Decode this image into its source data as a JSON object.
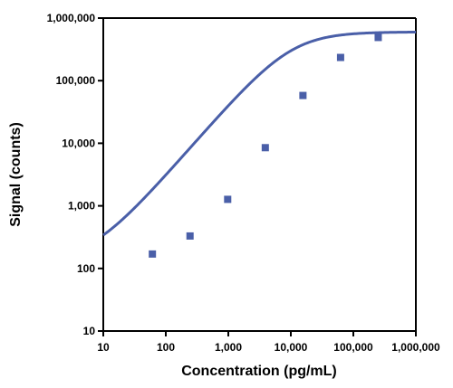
{
  "chart_data": {
    "type": "scatter",
    "title": "",
    "xlabel": "Concentration (pg/mL)",
    "ylabel": "Signal (counts)",
    "x_scale": "log",
    "y_scale": "log",
    "xlim": [
      10,
      1000000
    ],
    "ylim": [
      10,
      1000000
    ],
    "x_ticks": [
      10,
      100,
      1000,
      10000,
      100000,
      1000000
    ],
    "x_tick_labels": [
      "10",
      "100",
      "1,000",
      "10,000",
      "100,000",
      "1,000,000"
    ],
    "y_ticks": [
      10,
      100,
      1000,
      10000,
      100000,
      1000000
    ],
    "y_tick_labels": [
      "10",
      "100",
      "1,000",
      "10,000",
      "100,000",
      "1,000,000"
    ],
    "grid": false,
    "legend": "none",
    "colors": {
      "series": "#4a5fa8",
      "axis": "#000000"
    },
    "series": [
      {
        "marker": "square",
        "x": [
          61,
          244,
          977,
          3906,
          15625,
          62500,
          250000
        ],
        "y": [
          170,
          330,
          1270,
          8500,
          58000,
          235000,
          490000
        ]
      }
    ],
    "fit": {
      "type": "4PL",
      "bottom": 128,
      "top": 600000,
      "ec50": 10000,
      "hill": 1.15
    }
  }
}
